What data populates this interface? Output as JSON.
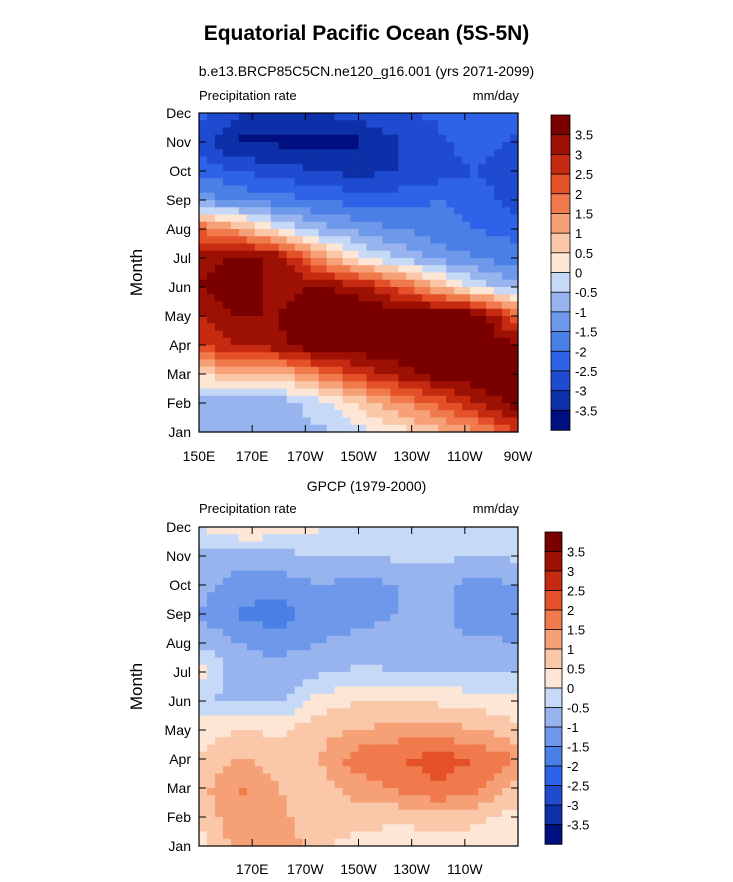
{
  "title": "Equatorial Pacific Ocean (5S-5N)",
  "chart_data": [
    {
      "type": "heatmap",
      "subtitle": "b.e13.BRCP85C5CN.ne120_g16.001 (yrs 2071-2099)",
      "left_label": "Precipitation rate",
      "right_label": "mm/day",
      "ylabel": "Month",
      "x_ticks": [
        "150E",
        "170E",
        "170W",
        "150W",
        "130W",
        "110W",
        "90W"
      ],
      "y_ticks": [
        "Jan",
        "Feb",
        "Mar",
        "Apr",
        "May",
        "Jun",
        "Jul",
        "Aug",
        "Sep",
        "Oct",
        "Nov",
        "Dec"
      ],
      "xlim": [
        150,
        270
      ],
      "colorbar_levels": [
        "3.5",
        "3",
        "2.5",
        "2",
        "1.5",
        "1",
        "0.5",
        "0",
        "-0.5",
        "-1",
        "-1.5",
        "-2",
        "-2.5",
        "-3",
        "-3.5"
      ],
      "z_description_note": "",
      "anomaly_model": {
        "x": [
          150,
          165,
          180,
          195,
          210,
          225,
          240,
          255,
          270
        ],
        "rows": [
          [
            -0.6,
            -0.8,
            -0.9,
            -0.6,
            -0.2,
            0.3,
            0.8,
            1.5,
            2.5
          ],
          [
            -0.8,
            -0.9,
            -0.8,
            -0.2,
            0.6,
            1.4,
            2.2,
            3.0,
            3.8
          ],
          [
            0.5,
            1.0,
            0.8,
            1.8,
            2.6,
            3.2,
            3.8,
            4.0,
            3.8
          ],
          [
            2.5,
            3.0,
            3.4,
            4.0,
            4.0,
            4.0,
            4.0,
            4.0,
            3.5
          ],
          [
            3.0,
            3.5,
            3.5,
            4.0,
            4.0,
            4.0,
            4.0,
            4.0,
            2.0
          ],
          [
            3.5,
            4.0,
            3.2,
            3.6,
            3.2,
            2.2,
            1.0,
            -0.2,
            -0.8
          ],
          [
            3.2,
            3.6,
            3.4,
            1.5,
            0.2,
            -0.6,
            -1.2,
            -1.5,
            -1.8
          ],
          [
            2.0,
            1.2,
            0.0,
            -0.8,
            -1.2,
            -1.5,
            -1.8,
            -2.0,
            -2.2
          ],
          [
            -1.2,
            -1.6,
            -1.8,
            -2.0,
            -2.2,
            -2.2,
            -2.0,
            -2.2,
            -2.8
          ],
          [
            -2.2,
            -2.5,
            -2.8,
            -3.0,
            -3.2,
            -3.0,
            -2.8,
            -2.5,
            -3.0
          ],
          [
            -2.8,
            -3.6,
            -3.6,
            -3.8,
            -3.6,
            -3.0,
            -2.6,
            -2.2,
            -2.6
          ],
          [
            -2.2,
            -3.0,
            -3.0,
            -3.0,
            -2.8,
            -2.6,
            -2.4,
            -2.2,
            -2.4
          ]
        ]
      }
    },
    {
      "type": "heatmap",
      "subtitle": "GPCP (1979-2000)",
      "left_label": "Precipitation rate",
      "right_label": "mm/day",
      "ylabel": "Month",
      "x_ticks": [
        "170E",
        "170W",
        "150W",
        "130W",
        "110W"
      ],
      "y_ticks": [
        "Jan",
        "Feb",
        "Mar",
        "Apr",
        "May",
        "Jun",
        "Jul",
        "Aug",
        "Sep",
        "Oct",
        "Nov",
        "Dec"
      ],
      "xlim": [
        150,
        270
      ],
      "colorbar_levels": [
        "3.5",
        "3",
        "2.5",
        "2",
        "1.5",
        "1",
        "0.5",
        "0",
        "-0.5",
        "-1",
        "-1.5",
        "-2",
        "-2.5",
        "-3",
        "-3.5"
      ],
      "anomaly_model": {
        "x": [
          150,
          165,
          180,
          195,
          210,
          225,
          240,
          255,
          270
        ],
        "rows": [
          [
            0.3,
            1.2,
            1.5,
            0.6,
            0.3,
            0.2,
            0.3,
            0.3,
            0.2
          ],
          [
            0.6,
            1.4,
            1.2,
            0.5,
            0.8,
            0.6,
            0.8,
            0.6,
            0.3
          ],
          [
            0.8,
            1.6,
            1.0,
            0.8,
            1.2,
            1.6,
            2.0,
            1.6,
            0.8
          ],
          [
            0.5,
            1.0,
            0.8,
            1.0,
            1.8,
            2.0,
            2.2,
            2.0,
            1.5
          ],
          [
            0.3,
            0.5,
            0.4,
            0.8,
            1.0,
            1.2,
            1.2,
            1.0,
            0.6
          ],
          [
            -0.5,
            -0.6,
            -0.6,
            0.2,
            0.5,
            0.5,
            0.4,
            0.3,
            0.2
          ],
          [
            0.2,
            -0.8,
            -0.8,
            -0.6,
            -0.4,
            -0.5,
            -0.5,
            -0.6,
            -0.5
          ],
          [
            -0.6,
            -1.0,
            -1.2,
            -1.0,
            -0.8,
            -0.7,
            -0.8,
            -0.9,
            -1.0
          ],
          [
            -1.0,
            -1.6,
            -1.8,
            -1.2,
            -1.3,
            -1.0,
            -0.8,
            -1.4,
            -1.2
          ],
          [
            -0.8,
            -1.2,
            -1.3,
            -1.0,
            -1.2,
            -1.0,
            -0.8,
            -1.2,
            -1.0
          ],
          [
            -0.6,
            -0.8,
            -0.7,
            -0.5,
            -0.5,
            -0.4,
            -0.4,
            -0.5,
            -0.4
          ],
          [
            0.0,
            0.5,
            0.4,
            0.1,
            -0.2,
            -0.2,
            -0.3,
            -0.3,
            -0.2
          ]
        ]
      }
    }
  ],
  "colors": {
    "levels": [
      "#000f7f",
      "#0d2fa8",
      "#1f4bd1",
      "#2e62e8",
      "#4a7fe6",
      "#6e98ea",
      "#97b4ef",
      "#c6d9f6",
      "#fde6d5",
      "#fac7a8",
      "#f6a078",
      "#f07a4c",
      "#e45128",
      "#c62a10",
      "#9c1104",
      "#7a0000"
    ]
  }
}
